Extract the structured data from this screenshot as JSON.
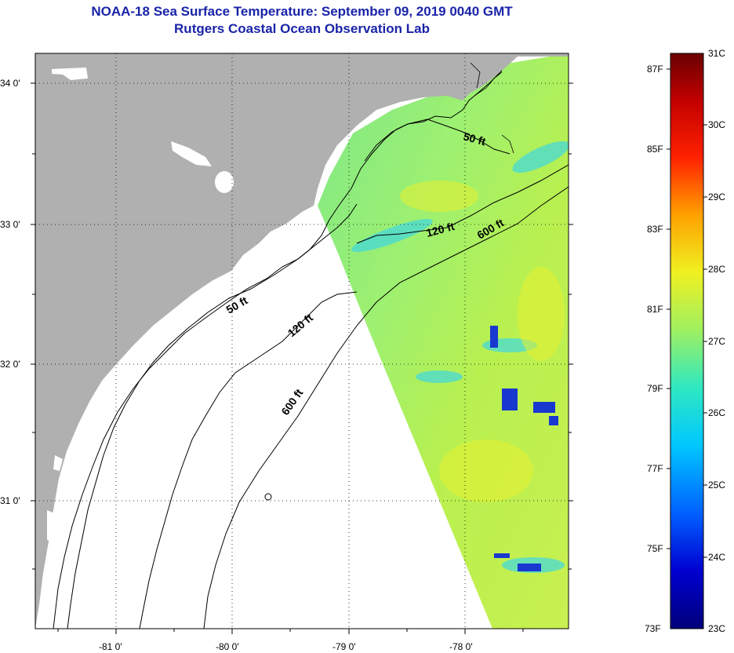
{
  "title": "NOAA-18 Sea Surface Temperature:  September 09, 2019 0040 GMT",
  "subtitle": "Rutgers Coastal Ocean Observation Lab",
  "map": {
    "lon_ticks": [
      "-81 0'",
      "-80 0'",
      "-79 0'",
      "-78 0'"
    ],
    "lat_ticks": [
      "34 0'",
      "33 0'",
      "32 0'",
      "31 0'"
    ],
    "land_color": "#b0b0b0",
    "no_data_color": "#ffffff"
  },
  "contours": {
    "c50_top": "50 ft",
    "c120_top": "120 ft",
    "c600_top": "600 ft",
    "c50_bottom": "50 ft",
    "c120_bottom": "120 ft",
    "c600_bottom": "600 ft"
  },
  "colorbar": {
    "fahrenheit": [
      "87F",
      "85F",
      "83F",
      "81F",
      "79F",
      "77F",
      "75F",
      "73F"
    ],
    "celsius": [
      "31C",
      "30C",
      "29C",
      "28C",
      "27C",
      "26C",
      "25C",
      "24C",
      "23C"
    ],
    "min_c": 23,
    "max_c": 31,
    "colors": [
      "#00007a",
      "#0000d0",
      "#0060ff",
      "#00c8ff",
      "#30e8c0",
      "#a0f060",
      "#f0f020",
      "#ffa000",
      "#ff2000",
      "#c00000",
      "#6a0000"
    ]
  }
}
